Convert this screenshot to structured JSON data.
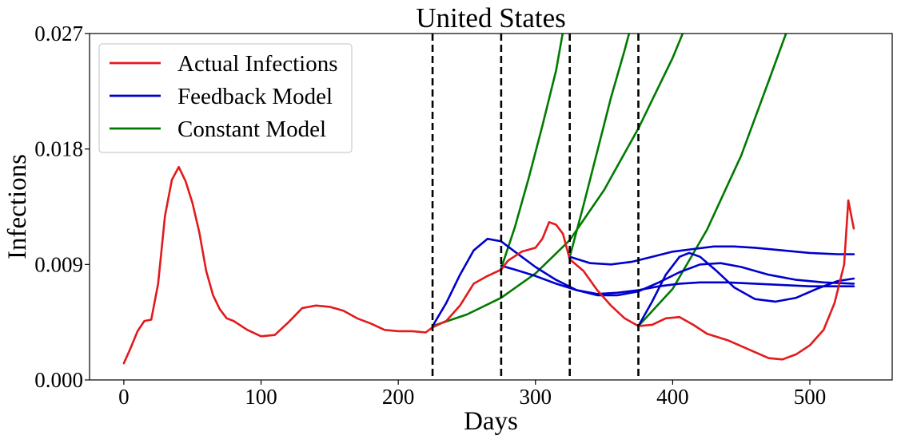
{
  "chart_data": {
    "type": "line",
    "title": "United States",
    "xlabel": "Days",
    "ylabel": "Infections",
    "xlim": [
      -25,
      560
    ],
    "ylim": [
      0,
      0.027
    ],
    "xticks": [
      0,
      100,
      200,
      300,
      400,
      500
    ],
    "yticks": [
      0.0,
      0.009,
      0.018,
      0.027
    ],
    "ytick_labels": [
      "0.000",
      "0.009",
      "0.018",
      "0.027"
    ],
    "grid": false,
    "legend_position": "top-left",
    "colors": {
      "actual": "#e31a1c",
      "feedback": "#0000cc",
      "constant": "#007a00",
      "vlines": "#000000"
    },
    "legend": [
      {
        "key": "actual",
        "label": "Actual Infections"
      },
      {
        "key": "feedback",
        "label": "Feedback Model"
      },
      {
        "key": "constant",
        "label": "Constant Model"
      }
    ],
    "vertical_lines": [
      225,
      275,
      325,
      375
    ],
    "series": [
      {
        "key": "actual",
        "name": "Actual Infections",
        "points": [
          [
            0,
            0.0013
          ],
          [
            5,
            0.0025
          ],
          [
            10,
            0.0038
          ],
          [
            15,
            0.0046
          ],
          [
            20,
            0.0047
          ],
          [
            25,
            0.0075
          ],
          [
            30,
            0.0128
          ],
          [
            35,
            0.0156
          ],
          [
            40,
            0.0166
          ],
          [
            45,
            0.0155
          ],
          [
            50,
            0.0138
          ],
          [
            55,
            0.0115
          ],
          [
            60,
            0.0085
          ],
          [
            65,
            0.0066
          ],
          [
            70,
            0.0055
          ],
          [
            75,
            0.0048
          ],
          [
            80,
            0.0046
          ],
          [
            90,
            0.0039
          ],
          [
            100,
            0.0034
          ],
          [
            110,
            0.0035
          ],
          [
            120,
            0.0045
          ],
          [
            130,
            0.0056
          ],
          [
            140,
            0.0058
          ],
          [
            150,
            0.0057
          ],
          [
            160,
            0.0054
          ],
          [
            170,
            0.0048
          ],
          [
            180,
            0.0044
          ],
          [
            190,
            0.0039
          ],
          [
            200,
            0.0038
          ],
          [
            210,
            0.0038
          ],
          [
            220,
            0.0037
          ],
          [
            225,
            0.0041
          ],
          [
            235,
            0.0046
          ],
          [
            245,
            0.0058
          ],
          [
            255,
            0.0075
          ],
          [
            265,
            0.0081
          ],
          [
            275,
            0.0086
          ],
          [
            280,
            0.0093
          ],
          [
            290,
            0.01
          ],
          [
            300,
            0.0103
          ],
          [
            305,
            0.011
          ],
          [
            310,
            0.0123
          ],
          [
            315,
            0.0121
          ],
          [
            320,
            0.0114
          ],
          [
            325,
            0.0094
          ],
          [
            335,
            0.0085
          ],
          [
            345,
            0.007
          ],
          [
            355,
            0.0058
          ],
          [
            365,
            0.0048
          ],
          [
            375,
            0.0042
          ],
          [
            385,
            0.0043
          ],
          [
            395,
            0.0048
          ],
          [
            405,
            0.0049
          ],
          [
            415,
            0.0043
          ],
          [
            425,
            0.0036
          ],
          [
            440,
            0.0031
          ],
          [
            455,
            0.0024
          ],
          [
            470,
            0.0017
          ],
          [
            480,
            0.0016
          ],
          [
            490,
            0.002
          ],
          [
            500,
            0.0027
          ],
          [
            510,
            0.0039
          ],
          [
            518,
            0.006
          ],
          [
            525,
            0.009
          ],
          [
            528,
            0.014
          ],
          [
            532,
            0.0118
          ]
        ]
      },
      {
        "key": "feedback",
        "name": "Feedback Model",
        "points": [
          [
            225,
            0.0042
          ],
          [
            235,
            0.006
          ],
          [
            245,
            0.0082
          ],
          [
            255,
            0.0101
          ],
          [
            265,
            0.011
          ],
          [
            275,
            0.0108
          ],
          [
            285,
            0.01
          ],
          [
            300,
            0.0088
          ],
          [
            315,
            0.0078
          ],
          [
            330,
            0.007
          ],
          [
            345,
            0.0067
          ],
          [
            360,
            0.0068
          ],
          [
            375,
            0.007
          ],
          [
            390,
            0.0073
          ],
          [
            405,
            0.0075
          ],
          [
            420,
            0.0076
          ],
          [
            440,
            0.0076
          ],
          [
            460,
            0.0075
          ],
          [
            480,
            0.0074
          ],
          [
            500,
            0.0073
          ],
          [
            520,
            0.0073
          ],
          [
            532,
            0.0073
          ]
        ]
      },
      {
        "key": "feedback",
        "name": "Feedback Model",
        "points": [
          [
            275,
            0.0089
          ],
          [
            285,
            0.0086
          ],
          [
            300,
            0.0081
          ],
          [
            315,
            0.0075
          ],
          [
            330,
            0.007
          ],
          [
            345,
            0.0066
          ],
          [
            360,
            0.0066
          ],
          [
            375,
            0.0069
          ],
          [
            390,
            0.0076
          ],
          [
            405,
            0.0084
          ],
          [
            420,
            0.009
          ],
          [
            435,
            0.0091
          ],
          [
            450,
            0.0088
          ],
          [
            470,
            0.0082
          ],
          [
            490,
            0.0078
          ],
          [
            510,
            0.0076
          ],
          [
            532,
            0.0075
          ]
        ]
      },
      {
        "key": "feedback",
        "name": "Feedback Model",
        "points": [
          [
            325,
            0.0096
          ],
          [
            340,
            0.0091
          ],
          [
            355,
            0.009
          ],
          [
            370,
            0.0092
          ],
          [
            385,
            0.0096
          ],
          [
            400,
            0.01
          ],
          [
            415,
            0.0102
          ],
          [
            430,
            0.0104
          ],
          [
            445,
            0.0104
          ],
          [
            460,
            0.0103
          ],
          [
            480,
            0.0101
          ],
          [
            500,
            0.0099
          ],
          [
            520,
            0.0098
          ],
          [
            532,
            0.0098
          ]
        ]
      },
      {
        "key": "feedback",
        "name": "Feedback Model",
        "points": [
          [
            375,
            0.0042
          ],
          [
            385,
            0.0061
          ],
          [
            395,
            0.0082
          ],
          [
            405,
            0.0096
          ],
          [
            412,
            0.0099
          ],
          [
            420,
            0.0096
          ],
          [
            432,
            0.0085
          ],
          [
            445,
            0.0072
          ],
          [
            460,
            0.0063
          ],
          [
            475,
            0.0061
          ],
          [
            490,
            0.0064
          ],
          [
            505,
            0.0071
          ],
          [
            520,
            0.0077
          ],
          [
            532,
            0.0079
          ]
        ]
      },
      {
        "key": "constant",
        "name": "Constant Model",
        "points": [
          [
            225,
            0.0042
          ],
          [
            250,
            0.0051
          ],
          [
            275,
            0.0064
          ],
          [
            300,
            0.0083
          ],
          [
            325,
            0.0109
          ],
          [
            350,
            0.0148
          ],
          [
            375,
            0.0196
          ],
          [
            400,
            0.0251
          ],
          [
            410,
            0.0277
          ]
        ]
      },
      {
        "key": "constant",
        "name": "Constant Model",
        "points": [
          [
            275,
            0.0087
          ],
          [
            285,
            0.0119
          ],
          [
            295,
            0.0157
          ],
          [
            305,
            0.0198
          ],
          [
            315,
            0.0241
          ],
          [
            321,
            0.0277
          ]
        ]
      },
      {
        "key": "constant",
        "name": "Constant Model",
        "points": [
          [
            325,
            0.0096
          ],
          [
            335,
            0.0136
          ],
          [
            345,
            0.0178
          ],
          [
            355,
            0.022
          ],
          [
            365,
            0.0257
          ],
          [
            370,
            0.0277
          ]
        ]
      },
      {
        "key": "constant",
        "name": "Constant Model",
        "points": [
          [
            375,
            0.0042
          ],
          [
            400,
            0.0071
          ],
          [
            425,
            0.0117
          ],
          [
            450,
            0.0175
          ],
          [
            470,
            0.0233
          ],
          [
            485,
            0.0277
          ]
        ]
      }
    ]
  }
}
